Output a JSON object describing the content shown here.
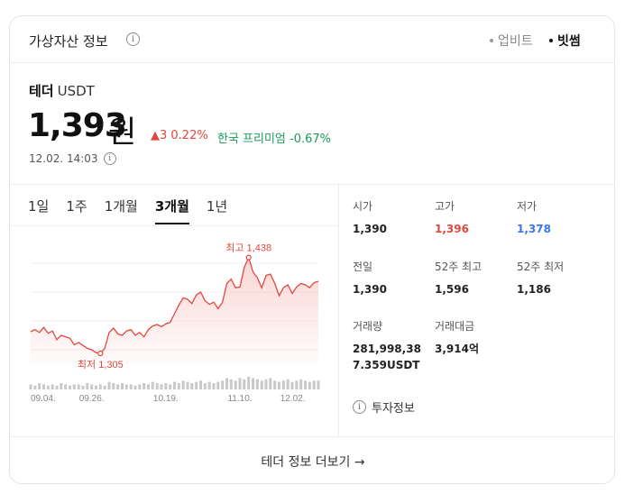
{
  "header": {
    "title": "가상자산 정보",
    "info_icon": "ⓘ",
    "exchanges": [
      {
        "label": "업비트",
        "selected": false
      },
      {
        "label": "빗썸",
        "selected": true
      }
    ]
  },
  "coin": {
    "name": "테더",
    "symbol": "USDT",
    "price": "1,393",
    "unit": "원",
    "change": "▲3 0.22%",
    "premium": "한국 프리미엄 -0.67%",
    "timestamp": "12.02. 14:03"
  },
  "tabs": [
    {
      "label": "1일",
      "active": false
    },
    {
      "label": "1주",
      "active": false
    },
    {
      "label": "1개월",
      "active": false
    },
    {
      "label": "3개월",
      "active": true
    },
    {
      "label": "1년",
      "active": false
    }
  ],
  "chart_data": {
    "type": "area",
    "y": [
      1335,
      1338,
      1334,
      1341,
      1333,
      1336,
      1324,
      1330,
      1328,
      1326,
      1317,
      1320,
      1316,
      1312,
      1310,
      1306,
      1305,
      1312,
      1334,
      1340,
      1332,
      1330,
      1336,
      1338,
      1330,
      1334,
      1328,
      1338,
      1343,
      1345,
      1342,
      1346,
      1348,
      1360,
      1372,
      1382,
      1380,
      1374,
      1386,
      1390,
      1378,
      1373,
      1376,
      1367,
      1376,
      1402,
      1408,
      1396,
      1397,
      1424,
      1438,
      1418,
      1410,
      1396,
      1413,
      1415,
      1402,
      1385,
      1396,
      1400,
      1388,
      1397,
      1402,
      1400,
      1396,
      1403,
      1405
    ],
    "volume": [
      4,
      3,
      5,
      4,
      3,
      4,
      3,
      5,
      4,
      3,
      4,
      4,
      3,
      5,
      4,
      3,
      4,
      3,
      6,
      5,
      4,
      5,
      4,
      4,
      3,
      4,
      5,
      4,
      6,
      5,
      4,
      5,
      4,
      6,
      5,
      7,
      6,
      5,
      6,
      7,
      5,
      6,
      5,
      6,
      7,
      9,
      8,
      7,
      9,
      8,
      10,
      9,
      8,
      7,
      8,
      9,
      7,
      6,
      7,
      8,
      6,
      7,
      8,
      7,
      6,
      7,
      7
    ],
    "x_ticks": [
      "09.04.",
      "09.26.",
      "10.19.",
      "11.10.",
      "12.02."
    ],
    "x_tick_index": [
      0,
      14,
      31,
      48,
      63
    ],
    "ylim": [
      1290,
      1450
    ],
    "high": {
      "label": "최고 1,438",
      "index": 50
    },
    "low": {
      "label": "최저 1,305",
      "index": 16
    },
    "line_color": "#e0473f",
    "volume_color": "#c9c9c9"
  },
  "stats": [
    {
      "label": "시가",
      "value": "1,390",
      "tone": "normal"
    },
    {
      "label": "고가",
      "value": "1,396",
      "tone": "red"
    },
    {
      "label": "저가",
      "value": "1,378",
      "tone": "blue"
    },
    {
      "label": "전일",
      "value": "1,390",
      "tone": "normal"
    },
    {
      "label": "52주 최고",
      "value": "1,596",
      "tone": "normal"
    },
    {
      "label": "52주 최저",
      "value": "1,186",
      "tone": "normal"
    },
    {
      "label": "거래량",
      "value": "281,998,38\n7.359USDT",
      "tone": "normal"
    },
    {
      "label": "거래대금",
      "value": "3,914억",
      "tone": "normal"
    }
  ],
  "invest_label": "투자정보",
  "footer_label": "테더 정보 더보기 →"
}
